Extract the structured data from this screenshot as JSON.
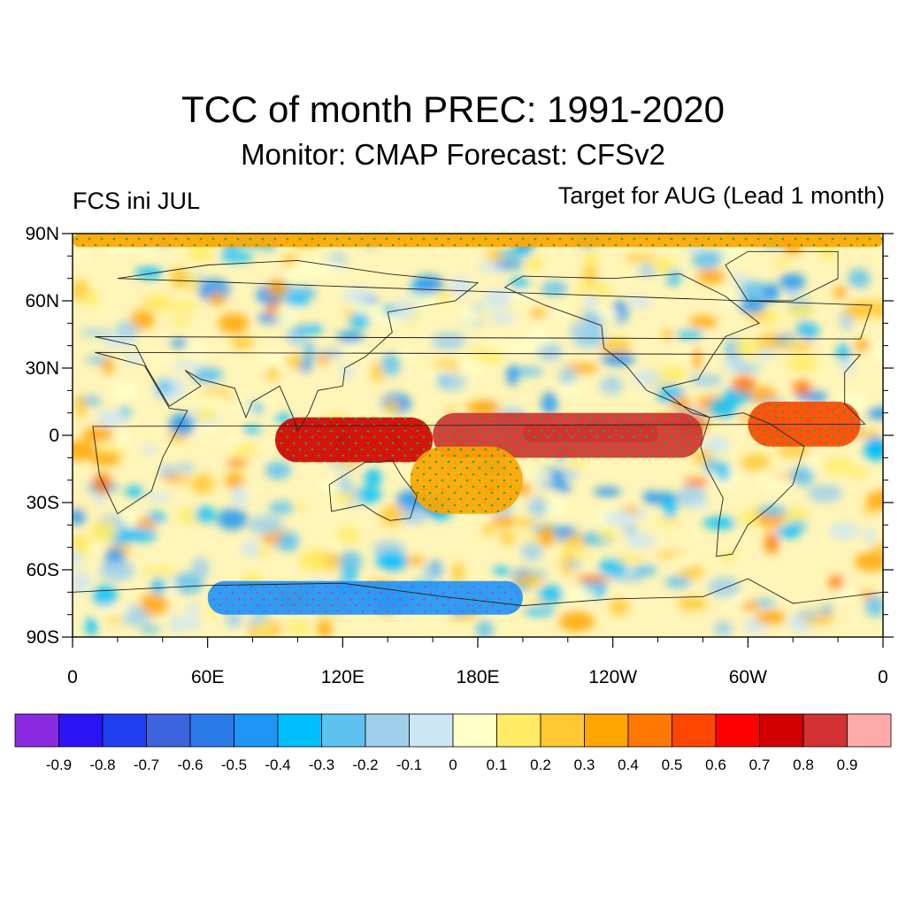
{
  "header": {
    "title": "TCC of month PREC: 1991-2020",
    "subtitle": "Monitor: CMAP   Forecast: CFSv2",
    "left_label": "FCS ini JUL",
    "right_label": "Target for AUG (Lead 1 month)"
  },
  "map": {
    "projection": "cylindrical-equidistant",
    "lat_range": [
      -90,
      90
    ],
    "lon_range": [
      0,
      360
    ],
    "lat_ticks": [
      {
        "lat": 90,
        "label": "90N"
      },
      {
        "lat": 60,
        "label": "60N"
      },
      {
        "lat": 30,
        "label": "30N"
      },
      {
        "lat": 0,
        "label": "0"
      },
      {
        "lat": -30,
        "label": "30S"
      },
      {
        "lat": -60,
        "label": "60S"
      },
      {
        "lat": -90,
        "label": "90S"
      }
    ],
    "lon_ticks": [
      {
        "lon": 0,
        "label": "0"
      },
      {
        "lon": 60,
        "label": "60E"
      },
      {
        "lon": 120,
        "label": "120E"
      },
      {
        "lon": 180,
        "label": "180E"
      },
      {
        "lon": 240,
        "label": "120W"
      },
      {
        "lon": 300,
        "label": "60W"
      },
      {
        "lon": 360,
        "label": "0"
      }
    ],
    "features": [
      {
        "name": "equatorial-pacific-high-correlation",
        "lon": [
          160,
          280
        ],
        "lat": [
          -10,
          10
        ],
        "value": 0.8
      },
      {
        "name": "equatorial-pacific-core",
        "lon": [
          200,
          260
        ],
        "lat": [
          -3,
          5
        ],
        "value": 0.9
      },
      {
        "name": "maritime-continent-positive",
        "lon": [
          90,
          160
        ],
        "lat": [
          -12,
          8
        ],
        "value": 0.7
      },
      {
        "name": "south-pacific-convergence-positive",
        "lon": [
          150,
          200
        ],
        "lat": [
          -35,
          -5
        ],
        "value": 0.4
      },
      {
        "name": "atlantic-itcz-positive",
        "lon": [
          300,
          350
        ],
        "lat": [
          -5,
          15
        ],
        "value": 0.5
      },
      {
        "name": "antarctic-negative",
        "lon": [
          60,
          200
        ],
        "lat": [
          -80,
          -65
        ],
        "value": -0.4
      },
      {
        "name": "north-pole-positive",
        "lon": [
          0,
          360
        ],
        "lat": [
          84,
          90
        ],
        "value": 0.3
      }
    ]
  },
  "colorbar": {
    "colors": [
      "#8a2be2",
      "#2a14f5",
      "#1e3ef0",
      "#3c64dc",
      "#2a7ae8",
      "#1e96f5",
      "#00bfff",
      "#5ec2f0",
      "#9ed0ec",
      "#cce6f5",
      "#ffffc8",
      "#ffec64",
      "#ffc832",
      "#ffa500",
      "#ff7800",
      "#ff4600",
      "#ff0000",
      "#d20000",
      "#d23232",
      "#ffaaaa"
    ],
    "labels": [
      "-0.9",
      "-0.8",
      "-0.7",
      "-0.6",
      "-0.5",
      "-0.4",
      "-0.3",
      "-0.2",
      "-0.1",
      "0",
      "0.1",
      "0.2",
      "0.3",
      "0.4",
      "0.5",
      "0.6",
      "0.7",
      "0.8",
      "0.9"
    ]
  }
}
